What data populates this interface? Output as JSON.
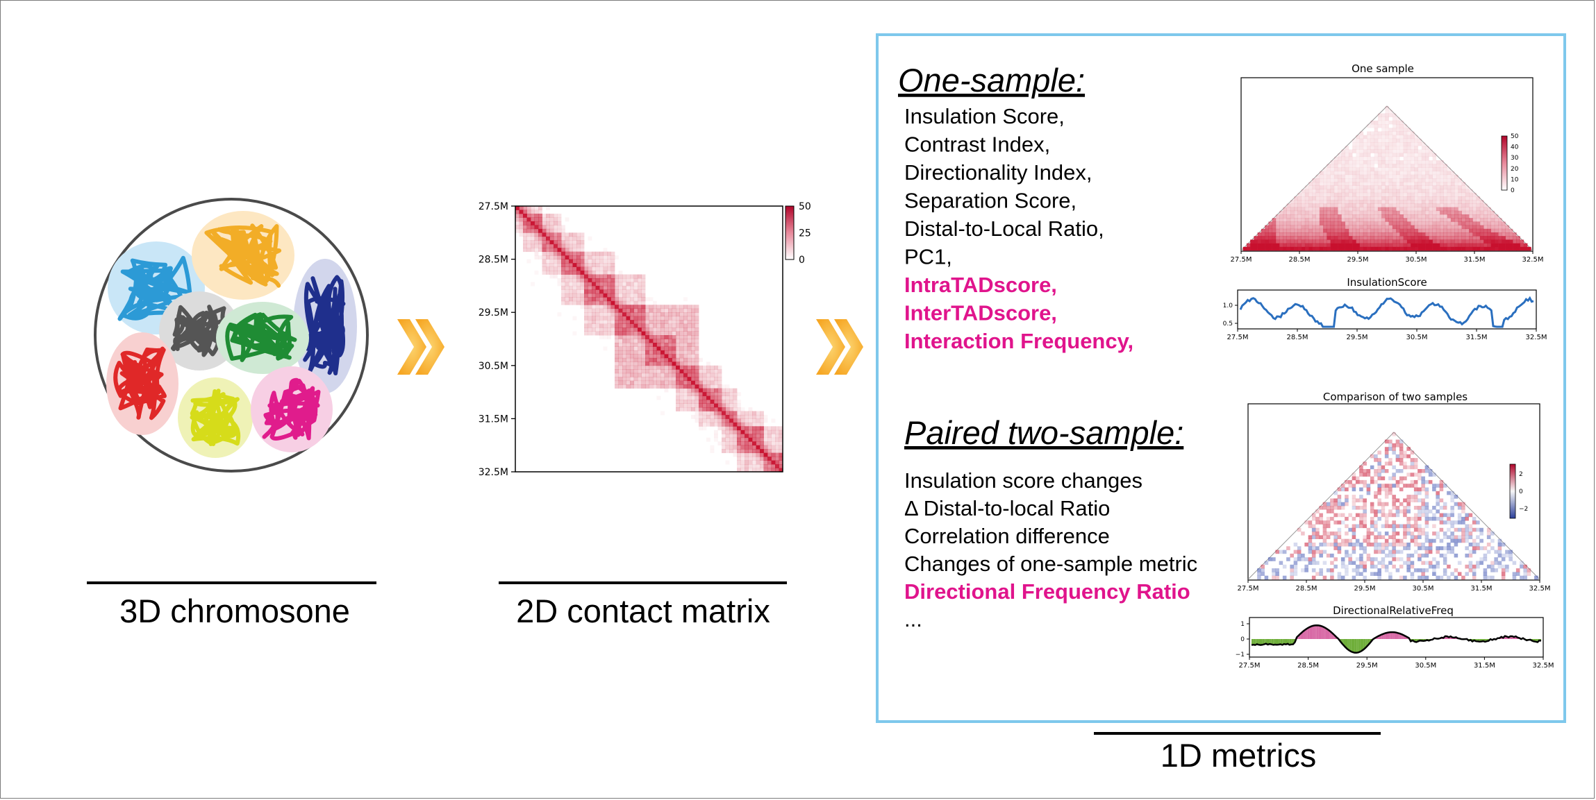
{
  "captions": {
    "chromosome": "3D chromosone",
    "matrix": "2D contact matrix",
    "metrics": "1D metrics"
  },
  "matrix_axis": {
    "y_ticks": [
      "27.5M",
      "28.5M",
      "29.5M",
      "30.5M",
      "31.5M",
      "32.5M"
    ],
    "colorbar_ticks": [
      "50",
      "25",
      "0"
    ]
  },
  "one_sample": {
    "heading": "One-sample:",
    "metrics": [
      {
        "text": "Insulation Score,",
        "highlight": false
      },
      {
        "text": "Contrast Index,",
        "highlight": false
      },
      {
        "text": "Directionality Index,",
        "highlight": false
      },
      {
        "text": "Separation Score,",
        "highlight": false
      },
      {
        "text": "Distal-to-Local Ratio,",
        "highlight": false
      },
      {
        "text": "PC1,",
        "highlight": false
      },
      {
        "text": "IntraTADscore,",
        "highlight": true
      },
      {
        "text": "InterTADscore,",
        "highlight": true
      },
      {
        "text": "Interaction Frequency,",
        "highlight": true
      }
    ]
  },
  "paired": {
    "heading": "Paired two-sample:",
    "metrics": [
      {
        "text": "Insulation score changes",
        "highlight": false
      },
      {
        "text": "Δ Distal-to-local Ratio",
        "highlight": false
      },
      {
        "text": "Correlation difference",
        "highlight": false
      },
      {
        "text": "Changes of one-sample metric",
        "highlight": false
      },
      {
        "text": "Directional Frequency Ratio",
        "highlight": true
      },
      {
        "text": "...",
        "highlight": false
      }
    ]
  },
  "plots": {
    "one_sample_title": "One sample",
    "one_sample_colorbar": [
      "50",
      "40",
      "30",
      "20",
      "10",
      "0"
    ],
    "insulation_title": "InsulationScore",
    "insulation_y_ticks": [
      "1.0",
      "0.5"
    ],
    "two_sample_title": "Comparison of two samples",
    "two_sample_colorbar": [
      "2",
      "0",
      "−2"
    ],
    "drf_title": "DirectionalRelativeFreq",
    "drf_y_ticks": [
      "1",
      "0",
      "−1"
    ],
    "x_ticks": [
      "27.5M",
      "28.5M",
      "29.5M",
      "30.5M",
      "31.5M",
      "32.5M"
    ]
  },
  "colors": {
    "highlight": "#e0148c",
    "heat": "#c8102e",
    "panel_border": "#7ec8ec",
    "arrow": "#f7b13c",
    "line_blue": "#2a6fbf",
    "drf_pos": "#d86aa6",
    "drf_neg": "#6fae3a"
  }
}
